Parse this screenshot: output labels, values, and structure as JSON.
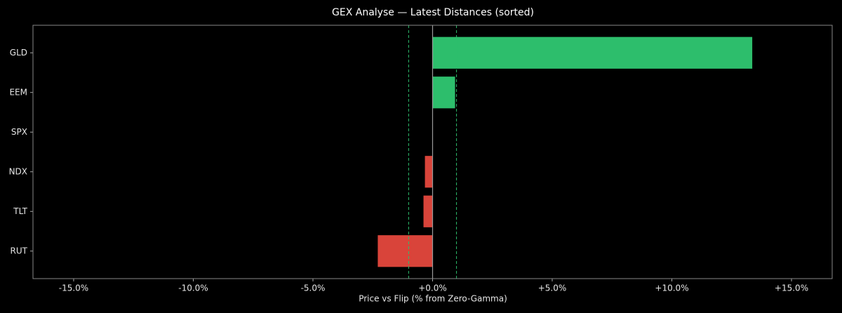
{
  "chart_data": {
    "type": "barh",
    "title": "GEX Analyse — Latest Distances (sorted)",
    "x_label": "Price vs Flip (% from Zero-Gamma)",
    "categories": [
      "GLD",
      "EEM",
      "SPX",
      "NDX",
      "TLT",
      "RUT"
    ],
    "values": [
      13.36,
      0.94,
      0,
      -0.32,
      -0.38,
      -2.29
    ],
    "positive_color": "#2dbe6c",
    "negative_color": "#d9443a",
    "threshold_lines": [
      -1,
      1
    ],
    "threshold_color": "#2dbe6c",
    "xlim": [
      -16.7,
      16.7
    ],
    "xticks": [
      {
        "value": -15,
        "label": "-15.0%"
      },
      {
        "value": -10,
        "label": "-10.0%"
      },
      {
        "value": -5,
        "label": "-5.0%"
      },
      {
        "value": 0,
        "label": "+0.0%"
      },
      {
        "value": 5,
        "label": "+5.0%"
      },
      {
        "value": 10,
        "label": "+10.0%"
      },
      {
        "value": 15,
        "label": "+15.0%"
      }
    ]
  }
}
